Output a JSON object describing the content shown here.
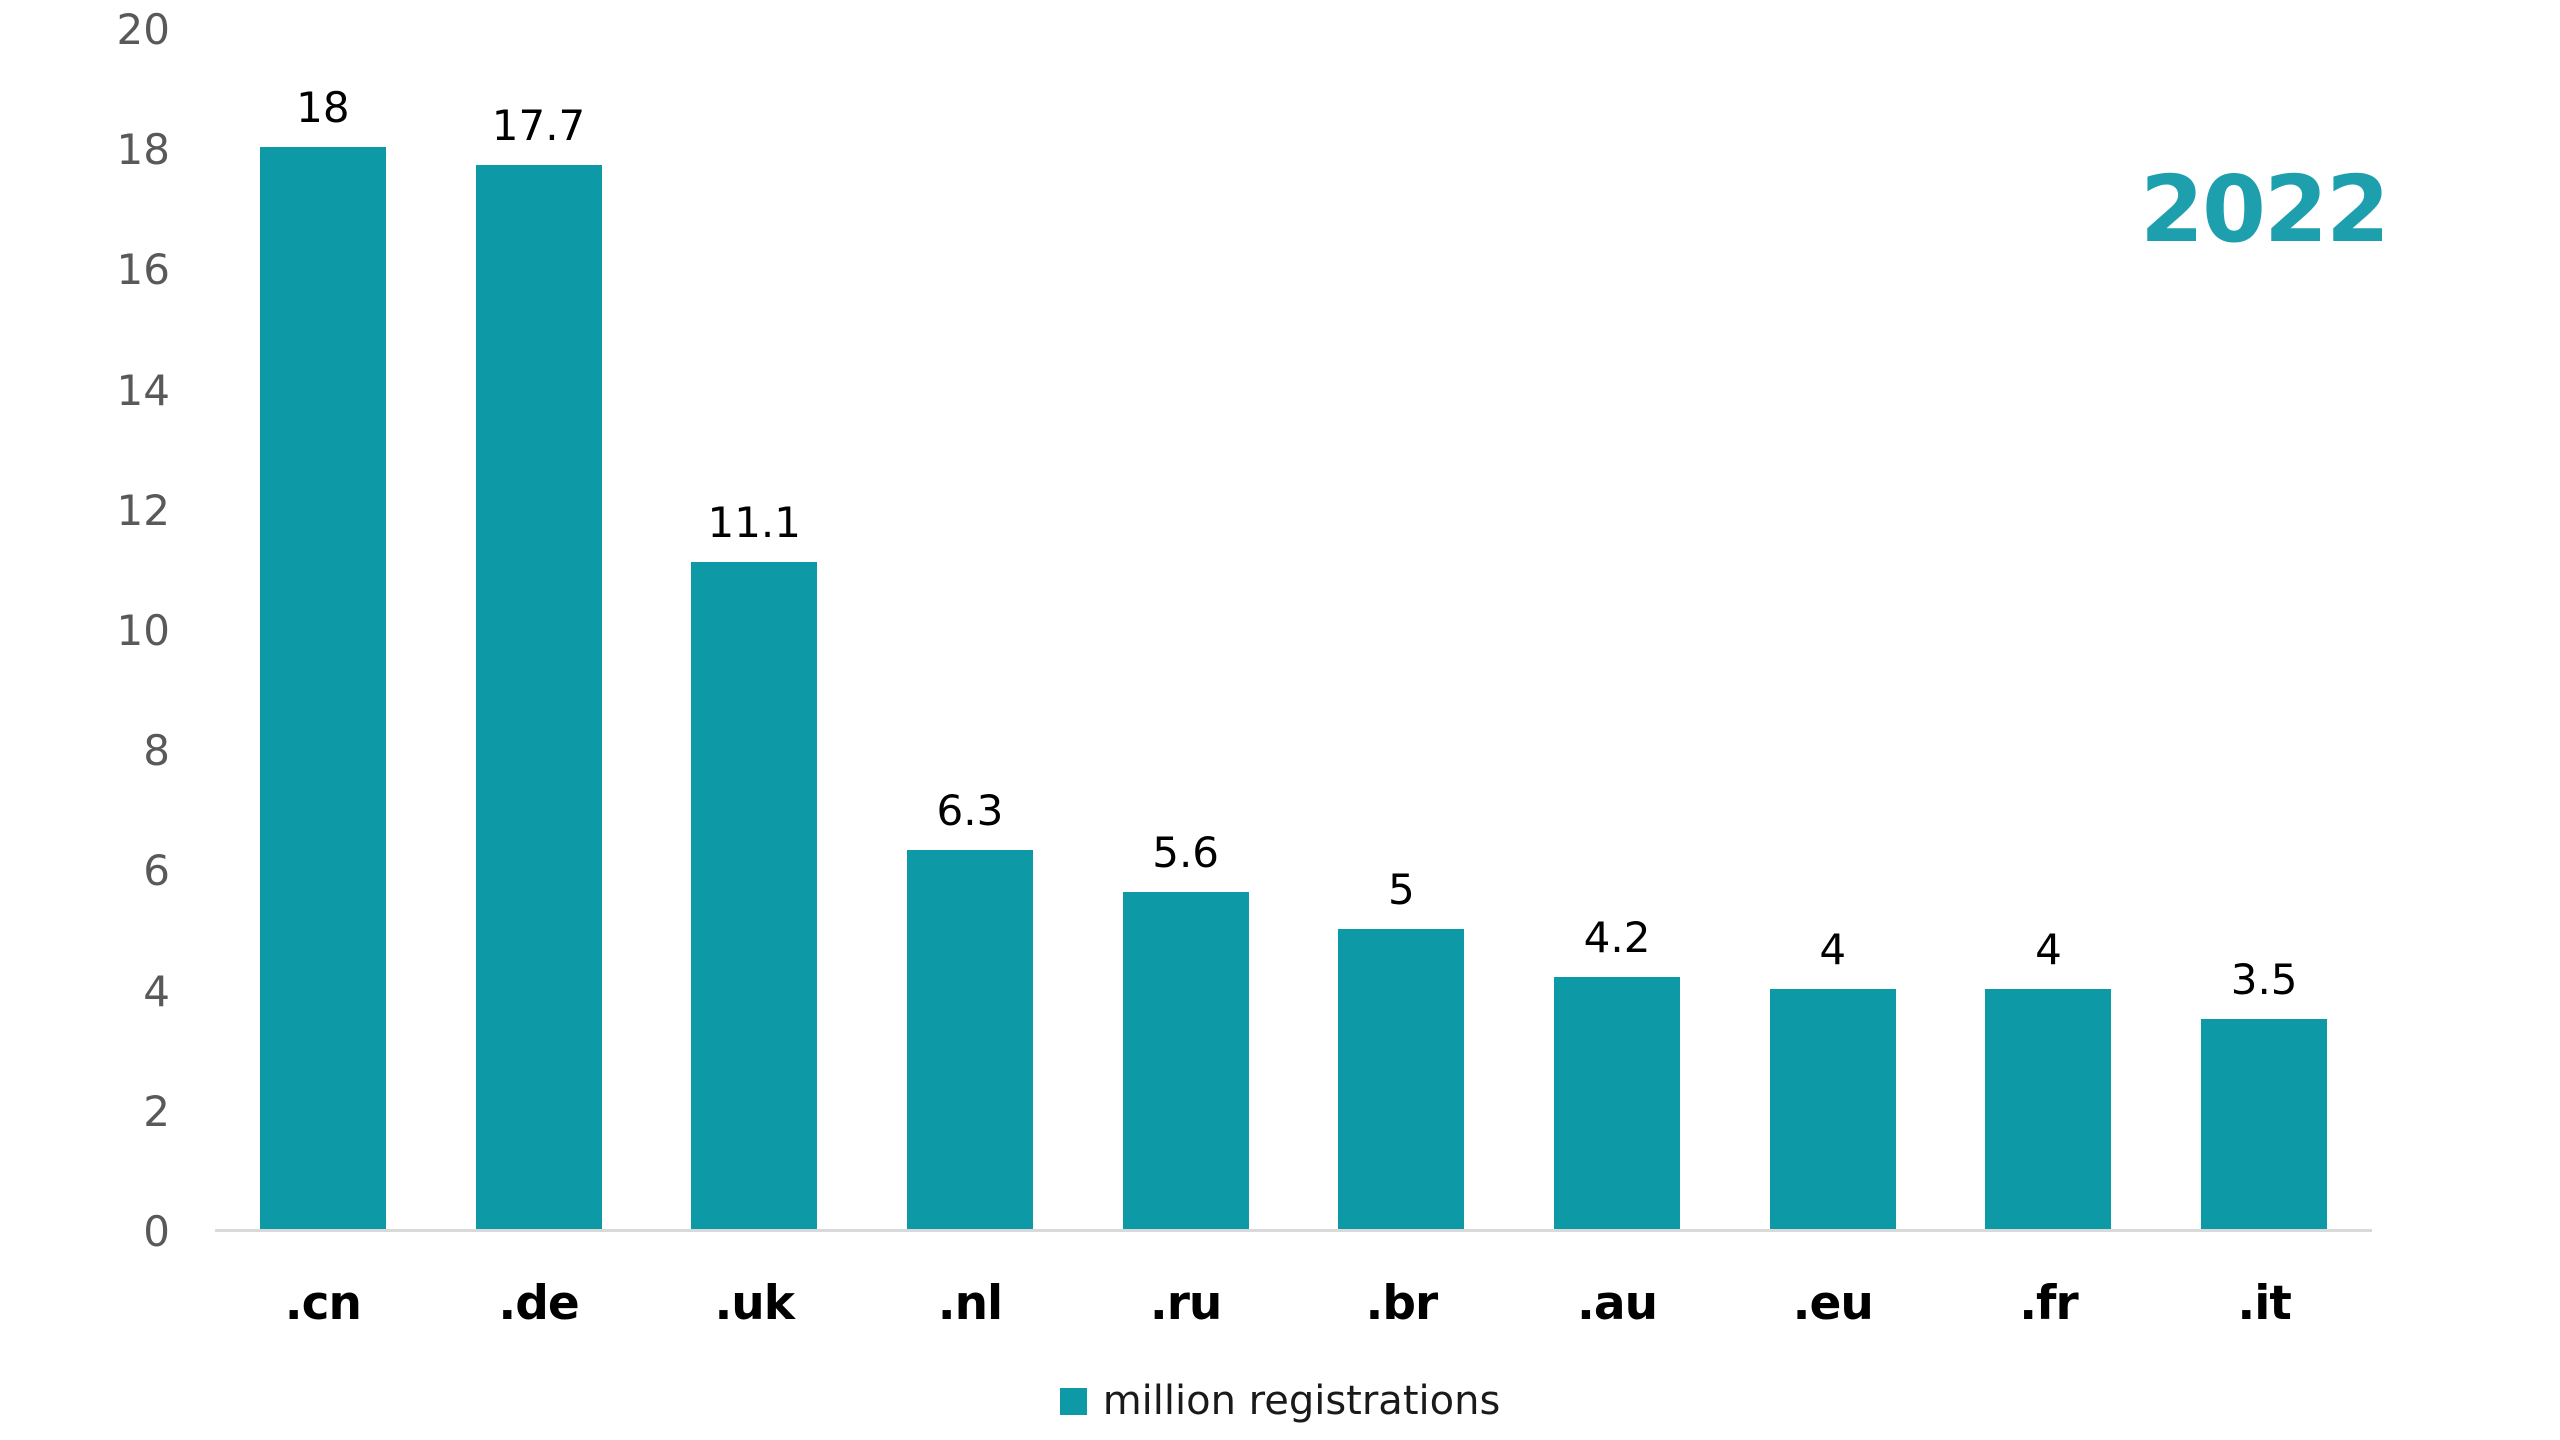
{
  "chart_data": {
    "type": "bar",
    "title": "",
    "year_label": "2022",
    "legend_label": "million registrations",
    "categories": [
      ".cn",
      ".de",
      ".uk",
      ".nl",
      ".ru",
      ".br",
      ".au",
      ".eu",
      ".fr",
      ".it"
    ],
    "values": [
      18,
      17.7,
      11.1,
      6.3,
      5.6,
      5,
      4.2,
      4,
      4,
      3.5
    ],
    "value_labels": [
      "18",
      "17.7",
      "11.1",
      "6.3",
      "5.6",
      "5",
      "4.2",
      "4",
      "4",
      "3.5"
    ],
    "ylim": [
      0,
      20
    ],
    "yticks": [
      0,
      2,
      4,
      6,
      8,
      10,
      12,
      14,
      16,
      18,
      20
    ],
    "grid": false,
    "legend_position": "bottom-center",
    "legend_swatch_icon": "square-icon",
    "colors": {
      "bar": "#0d99a6",
      "year_text": "#1d9fae",
      "axis_line": "#d9d9d9",
      "y_tick_text": "#595959",
      "value_label_text": "#000000",
      "category_label_text": "#000000",
      "legend_text": "#1a1a1a",
      "background": "#ffffff"
    }
  }
}
